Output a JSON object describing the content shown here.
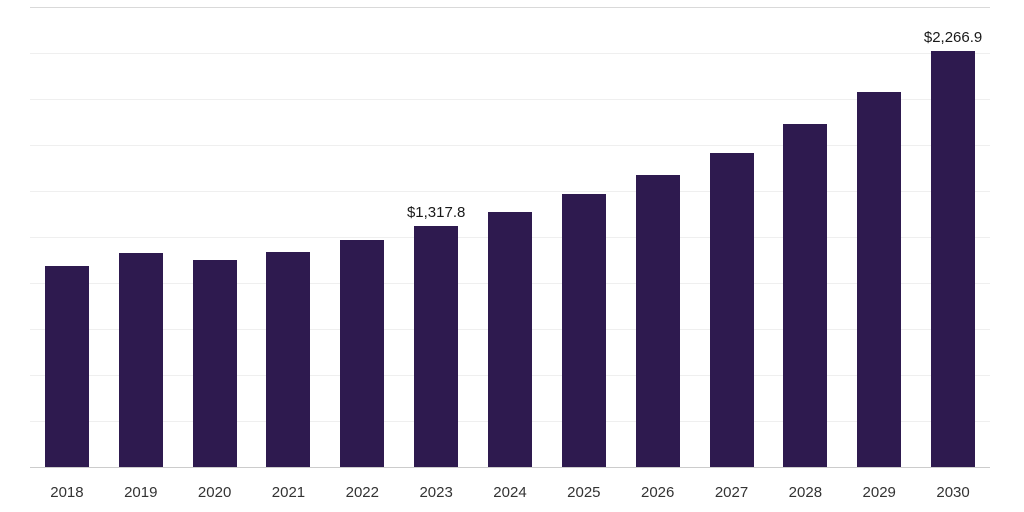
{
  "chart_data": {
    "type": "bar",
    "title": "",
    "xlabel": "",
    "ylabel": "",
    "categories": [
      "2018",
      "2019",
      "2020",
      "2021",
      "2022",
      "2023",
      "2024",
      "2025",
      "2026",
      "2027",
      "2028",
      "2029",
      "2030"
    ],
    "values": [
      1100,
      1170,
      1133,
      1176,
      1240,
      1317.8,
      1392,
      1487,
      1592,
      1714,
      1870,
      2046,
      2266.9
    ],
    "data_labels": [
      "",
      "",
      "",
      "",
      "",
      "$1,317.8",
      "",
      "",
      "",
      "",
      "",
      "",
      "$2,266.9"
    ],
    "ylim": [
      0,
      2500
    ],
    "grid": true,
    "gridline_interval": 250,
    "legend_position": "none",
    "colors": {
      "bar": "#2e1a4f",
      "gridline": "#efefef",
      "top_gridline": "#d9d9d9",
      "axis_line": "#cccccc",
      "label_text": "#1a1a1a",
      "tick_text": "#333333",
      "background": "#ffffff"
    }
  }
}
